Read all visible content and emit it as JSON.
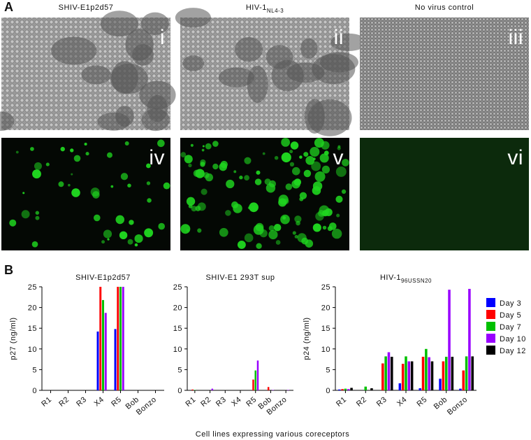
{
  "panel_a": {
    "label": "A",
    "columns": [
      {
        "title": "SHIV-E1p2d57"
      },
      {
        "title": "HIV-1",
        "subscript": "NL4-3"
      },
      {
        "title": "No virus control"
      }
    ],
    "panels": [
      "i",
      "ii",
      "iii",
      "iv",
      "v",
      "vi"
    ]
  },
  "panel_b": {
    "label": "B",
    "xlabel": "Cell lines expressing various coreceptors"
  },
  "chart_data": [
    {
      "type": "bar",
      "title": "SHIV-E1p2d57",
      "ylabel": "p27 (ng/ml)",
      "categories": [
        "R1",
        "R2",
        "R3",
        "X4",
        "R5",
        "Bob",
        "Bonzo"
      ],
      "ylim": [
        0,
        25
      ],
      "yticks": [
        0,
        5,
        10,
        15,
        20,
        25
      ],
      "series": [
        {
          "name": "Day 3",
          "color": "#0000ff",
          "values": [
            0,
            0,
            0,
            14.2,
            14.8,
            0,
            0
          ]
        },
        {
          "name": "Day 5",
          "color": "#ff0000",
          "values": [
            0,
            0,
            0,
            25,
            25,
            0,
            0
          ]
        },
        {
          "name": "Day 7",
          "color": "#00c000",
          "values": [
            0,
            0,
            0,
            21.8,
            25,
            0,
            0
          ]
        },
        {
          "name": "Day 10",
          "color": "#9900ff",
          "values": [
            0,
            0,
            0,
            18.7,
            25,
            0,
            0
          ]
        },
        {
          "name": "Day 12",
          "color": "#000000",
          "values": [
            0,
            0,
            0,
            0,
            0,
            0,
            0
          ]
        }
      ]
    },
    {
      "type": "bar",
      "title": "SHIV-E1 293T sup",
      "categories": [
        "R1",
        "R2",
        "R3",
        "X4",
        "R5",
        "Bob",
        "Bonzo"
      ],
      "ylim": [
        0,
        25
      ],
      "yticks": [
        0,
        5,
        10,
        15,
        20,
        25
      ],
      "series": [
        {
          "name": "Day 3",
          "color": "#0000ff",
          "values": [
            0,
            0,
            0,
            0,
            0,
            0,
            0
          ]
        },
        {
          "name": "Day 5",
          "color": "#ff0000",
          "values": [
            0.2,
            0,
            0,
            0,
            2.6,
            0.8,
            0
          ]
        },
        {
          "name": "Day 7",
          "color": "#00c000",
          "values": [
            0.1,
            0,
            0,
            0,
            4.8,
            0,
            0
          ]
        },
        {
          "name": "Day 10",
          "color": "#9900ff",
          "values": [
            0,
            0.4,
            0,
            0,
            7.2,
            0.1,
            0.1
          ]
        },
        {
          "name": "Day 12",
          "color": "#000000",
          "values": [
            0,
            0,
            0,
            0,
            0,
            0,
            0
          ]
        }
      ]
    },
    {
      "type": "bar",
      "title": "HIV-1",
      "title_subscript": "96USSN20",
      "ylabel": "p24 (ng/ml)",
      "categories": [
        "R1",
        "R2",
        "R3",
        "X4",
        "R5",
        "Bob",
        "Bonzo"
      ],
      "ylim": [
        0,
        25
      ],
      "yticks": [
        0,
        5,
        10,
        15,
        20,
        25
      ],
      "legend": "right",
      "series": [
        {
          "name": "Day 3",
          "color": "#0000ff",
          "values": [
            0.2,
            0,
            0,
            1.7,
            0.5,
            2.8,
            0.4
          ]
        },
        {
          "name": "Day 5",
          "color": "#ff0000",
          "values": [
            0.3,
            0,
            6.5,
            6.4,
            8.1,
            7.0,
            4.8
          ]
        },
        {
          "name": "Day 7",
          "color": "#00c000",
          "values": [
            0.4,
            0.9,
            8.2,
            8.2,
            10,
            8.1,
            8.2
          ]
        },
        {
          "name": "Day 10",
          "color": "#9900ff",
          "values": [
            0.3,
            0,
            9.2,
            7.0,
            8.0,
            24.3,
            24.5
          ]
        },
        {
          "name": "Day 12",
          "color": "#000000",
          "values": [
            0.6,
            0.5,
            8.1,
            7.0,
            7.0,
            8.1,
            8.2
          ]
        }
      ]
    }
  ]
}
